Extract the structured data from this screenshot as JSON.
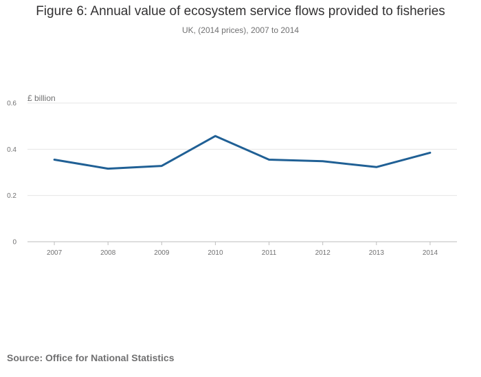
{
  "chart_data": {
    "type": "line",
    "title": "Figure 6: Annual value of ecosystem service flows provided to fisheries",
    "subtitle": "UK, (2014 prices), 2007 to 2014",
    "ylabel": "£ billion",
    "xlabel": "",
    "categories": [
      "2007",
      "2008",
      "2009",
      "2010",
      "2011",
      "2012",
      "2013",
      "2014"
    ],
    "series": [
      {
        "name": "Annual value of ecosystem service flows provided to fisheries",
        "values": [
          0.355,
          0.316,
          0.328,
          0.457,
          0.355,
          0.348,
          0.323,
          0.385
        ],
        "color": "#206095"
      }
    ],
    "ylim": [
      0,
      0.6
    ],
    "yticks": [
      "0",
      "0.2",
      "0.4",
      "0.6"
    ],
    "grid": true
  },
  "source": "Source: Office for National Statistics"
}
